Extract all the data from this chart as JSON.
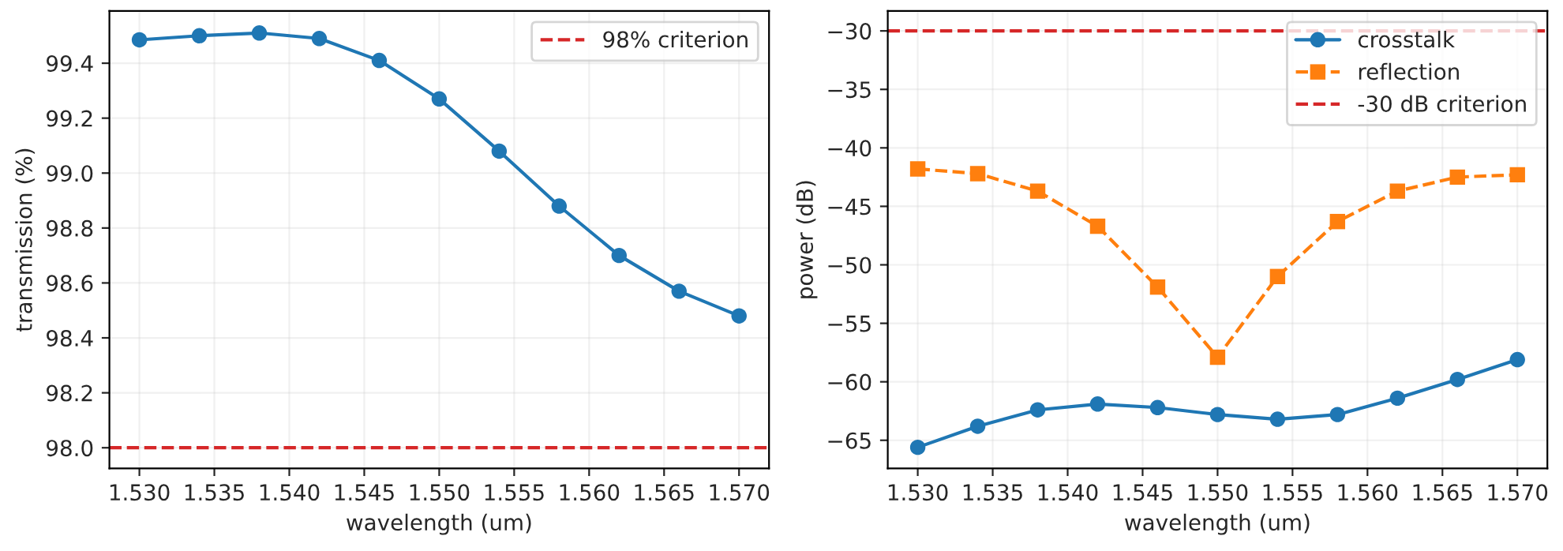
{
  "chart_data": [
    {
      "type": "line",
      "xlabel": "wavelength (um)",
      "ylabel": "transmission (%)",
      "x": [
        1.53,
        1.534,
        1.538,
        1.542,
        1.546,
        1.55,
        1.554,
        1.558,
        1.562,
        1.566,
        1.57
      ],
      "series": [
        {
          "color": "#1f77b4",
          "marker": "circle",
          "line_style": "solid",
          "values": [
            99.485,
            99.5,
            99.51,
            99.49,
            99.41,
            99.27,
            99.08,
            98.88,
            98.7,
            98.57,
            98.48
          ]
        }
      ],
      "ref_lines": [
        {
          "axis": "y",
          "value": 98.0,
          "label": "98% criterion",
          "color": "#d62728",
          "line_style": "dashed"
        }
      ],
      "xlim": [
        1.528,
        1.572
      ],
      "xticks": [
        {
          "value": 1.53,
          "label": "1.530"
        },
        {
          "value": 1.535,
          "label": "1.535"
        },
        {
          "value": 1.54,
          "label": "1.540"
        },
        {
          "value": 1.545,
          "label": "1.545"
        },
        {
          "value": 1.55,
          "label": "1.550"
        },
        {
          "value": 1.555,
          "label": "1.555"
        },
        {
          "value": 1.56,
          "label": "1.560"
        },
        {
          "value": 1.565,
          "label": "1.565"
        },
        {
          "value": 1.57,
          "label": "1.570"
        }
      ],
      "ylim": [
        97.925,
        99.59
      ],
      "yticks": [
        {
          "value": 98.0,
          "label": "98.0"
        },
        98.2,
        98.4,
        98.6,
        98.8,
        {
          "value": 99.0,
          "label": "99.0"
        },
        99.2,
        99.4
      ],
      "grid": true,
      "legend": "top right"
    },
    {
      "type": "line",
      "xlabel": "wavelength (um)",
      "ylabel": "power (dB)",
      "x": [
        1.53,
        1.534,
        1.538,
        1.542,
        1.546,
        1.55,
        1.554,
        1.558,
        1.562,
        1.566,
        1.57
      ],
      "series": [
        {
          "name": "crosstalk",
          "color": "#1f77b4",
          "marker": "circle",
          "line_style": "solid",
          "values": [
            -65.6,
            -63.8,
            -62.4,
            -61.9,
            -62.2,
            -62.8,
            -63.2,
            -62.8,
            -61.4,
            -59.8,
            -58.1
          ]
        },
        {
          "name": "reflection",
          "color": "#ff7f0e",
          "marker": "square",
          "line_style": "dashed",
          "values": [
            -41.8,
            -42.2,
            -43.7,
            -46.7,
            -51.9,
            -57.9,
            -51.0,
            -46.3,
            -43.7,
            -42.5,
            -42.3
          ]
        }
      ],
      "ref_lines": [
        {
          "axis": "y",
          "value": -30,
          "label": "-30 dB criterion",
          "color": "#d62728",
          "line_style": "dashed"
        }
      ],
      "xlim": [
        1.528,
        1.572
      ],
      "xticks": [
        {
          "value": 1.53,
          "label": "1.530"
        },
        {
          "value": 1.535,
          "label": "1.535"
        },
        {
          "value": 1.54,
          "label": "1.540"
        },
        {
          "value": 1.545,
          "label": "1.545"
        },
        {
          "value": 1.55,
          "label": "1.550"
        },
        {
          "value": 1.555,
          "label": "1.555"
        },
        {
          "value": 1.56,
          "label": "1.560"
        },
        {
          "value": 1.565,
          "label": "1.565"
        },
        {
          "value": 1.57,
          "label": "1.570"
        }
      ],
      "ylim": [
        -67.4,
        -28.3
      ],
      "yticks": [
        {
          "value": -65,
          "label": "−65"
        },
        {
          "value": -60,
          "label": "−60"
        },
        {
          "value": -55,
          "label": "−55"
        },
        {
          "value": -50,
          "label": "−50"
        },
        {
          "value": -45,
          "label": "−45"
        },
        {
          "value": -40,
          "label": "−40"
        },
        {
          "value": -35,
          "label": "−35"
        },
        {
          "value": -30,
          "label": "−30"
        }
      ],
      "grid": true,
      "legend": "top right"
    }
  ]
}
